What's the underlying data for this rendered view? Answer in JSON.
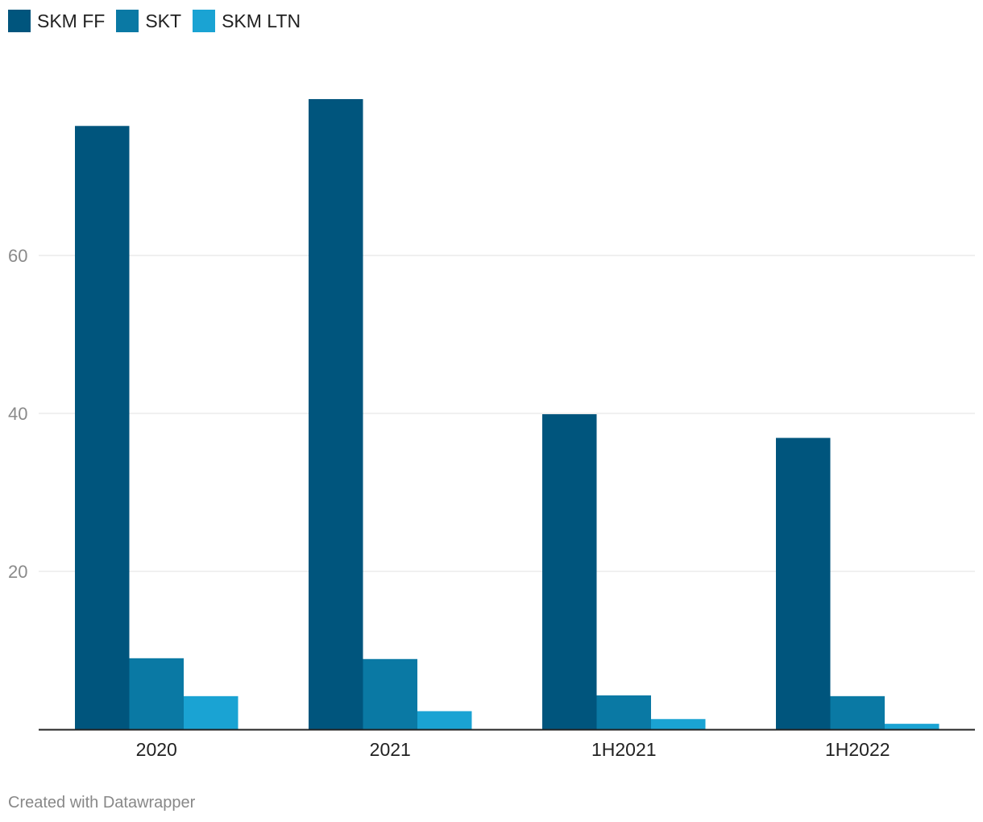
{
  "chart_data": {
    "type": "bar",
    "title": "",
    "xlabel": "",
    "ylabel": "",
    "categories": [
      "2020",
      "2021",
      "1H2021",
      "1H2022"
    ],
    "series": [
      {
        "name": "SKM FF",
        "color": "#00557d",
        "values": [
          76.4,
          79.8,
          39.9,
          36.9
        ]
      },
      {
        "name": "SKT",
        "color": "#0a79a4",
        "values": [
          9.0,
          8.9,
          4.3,
          4.2
        ]
      },
      {
        "name": "SKM LTN",
        "color": "#1aa3d3",
        "values": [
          4.2,
          2.3,
          1.3,
          0.7
        ]
      }
    ],
    "ylim": [
      0,
      80
    ],
    "yticks": [
      20,
      40,
      60
    ],
    "ytick_labels": [
      "20",
      "40",
      "60"
    ],
    "grid": true,
    "legend": "top-left"
  },
  "footer": {
    "credit": "Created with Datawrapper"
  }
}
